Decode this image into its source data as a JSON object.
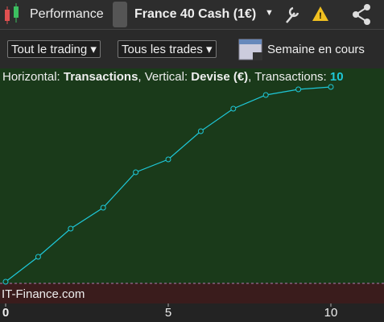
{
  "toolbar": {
    "title": "Performance",
    "instrument": "France 40 Cash (1€)"
  },
  "filters": {
    "trading": "Tout le trading",
    "trades": "Tous les trades",
    "period": "Semaine en cours"
  },
  "chart": {
    "type": "line",
    "info": {
      "h_label": "Horizontal:",
      "h_value": "Transactions",
      "v_label": ", Vertical:",
      "v_value": "Devise (€)",
      "n_label": ", Transactions:",
      "n_value": "10"
    },
    "watermark": "IT-Finance.com",
    "x": [
      0,
      1,
      2,
      3,
      4,
      5,
      6,
      7,
      8,
      9,
      10
    ],
    "y": [
      2,
      33,
      68,
      94,
      138,
      154,
      189,
      217,
      234,
      241,
      244
    ],
    "color": "#1ec8d8",
    "xlim": [
      0,
      10
    ],
    "xticks": [
      0,
      5,
      10
    ],
    "ylim": [
      0,
      264
    ]
  }
}
